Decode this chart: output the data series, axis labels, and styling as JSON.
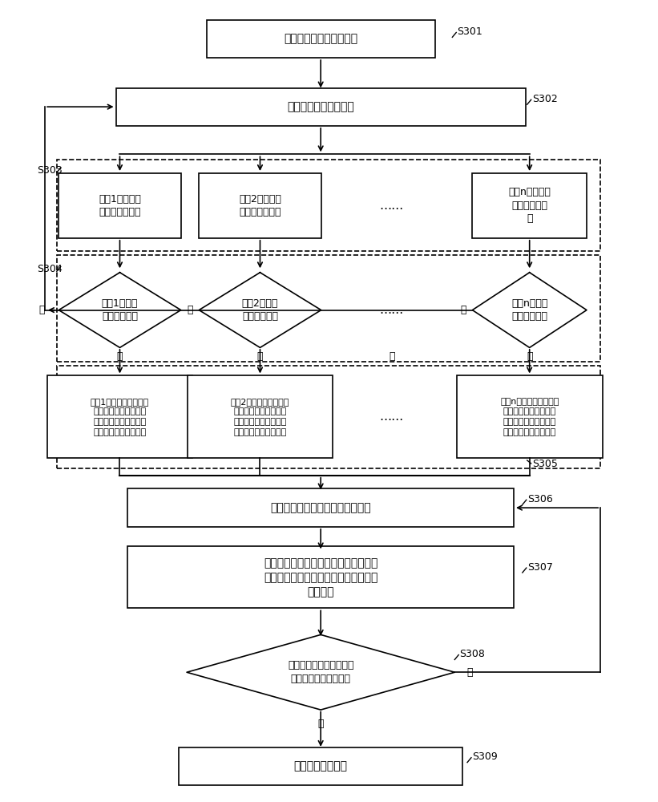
{
  "bg_color": "#ffffff",
  "text_color": "#000000",
  "s301_text": "空调机组完成安装并通电",
  "s302_text": "主机广播地址分配指令",
  "s303_1_text": "从机1接收主机\n的地址分配指令",
  "s303_2_text": "从机2接收主机\n的地址分配指令",
  "s303_n_text": "从机n接收主机\n的地址分配指\n令",
  "s304_1_text": "从机1判断是\n否已具有地址",
  "s304_2_text": "从机2判断是\n否已具有地址",
  "s304_n_text": "从机n判断是\n否已具有地址",
  "s305_1_text": "从机1进入随机通讯处理\n模式，在收到地址分配\n指令后的某一时刻发送\n自身的身份信息至主机",
  "s305_2_text": "从机2进入随机通讯处理\n模式，在收到地址分配\n指令后的某一时刻发送\n自身的身份信息至主机",
  "s305_n_text": "从机n进入随机通讯处理\n模式，在收到地址分配\n指令后的某一时刻发送\n自身的身份信息至主机",
  "s306_text": "主机接收到某一个从机的身份信息",
  "s307_text": "主机为对应该身份信息的从机自动分配\n地址，并将该地址发送给对应该身份信\n息的从机",
  "s308_text": "主机判断是否所有在线的\n从机均已完成地址分配",
  "s309_text": "自动分配地址结束",
  "dots": "……",
  "yes": "是",
  "no": "否"
}
